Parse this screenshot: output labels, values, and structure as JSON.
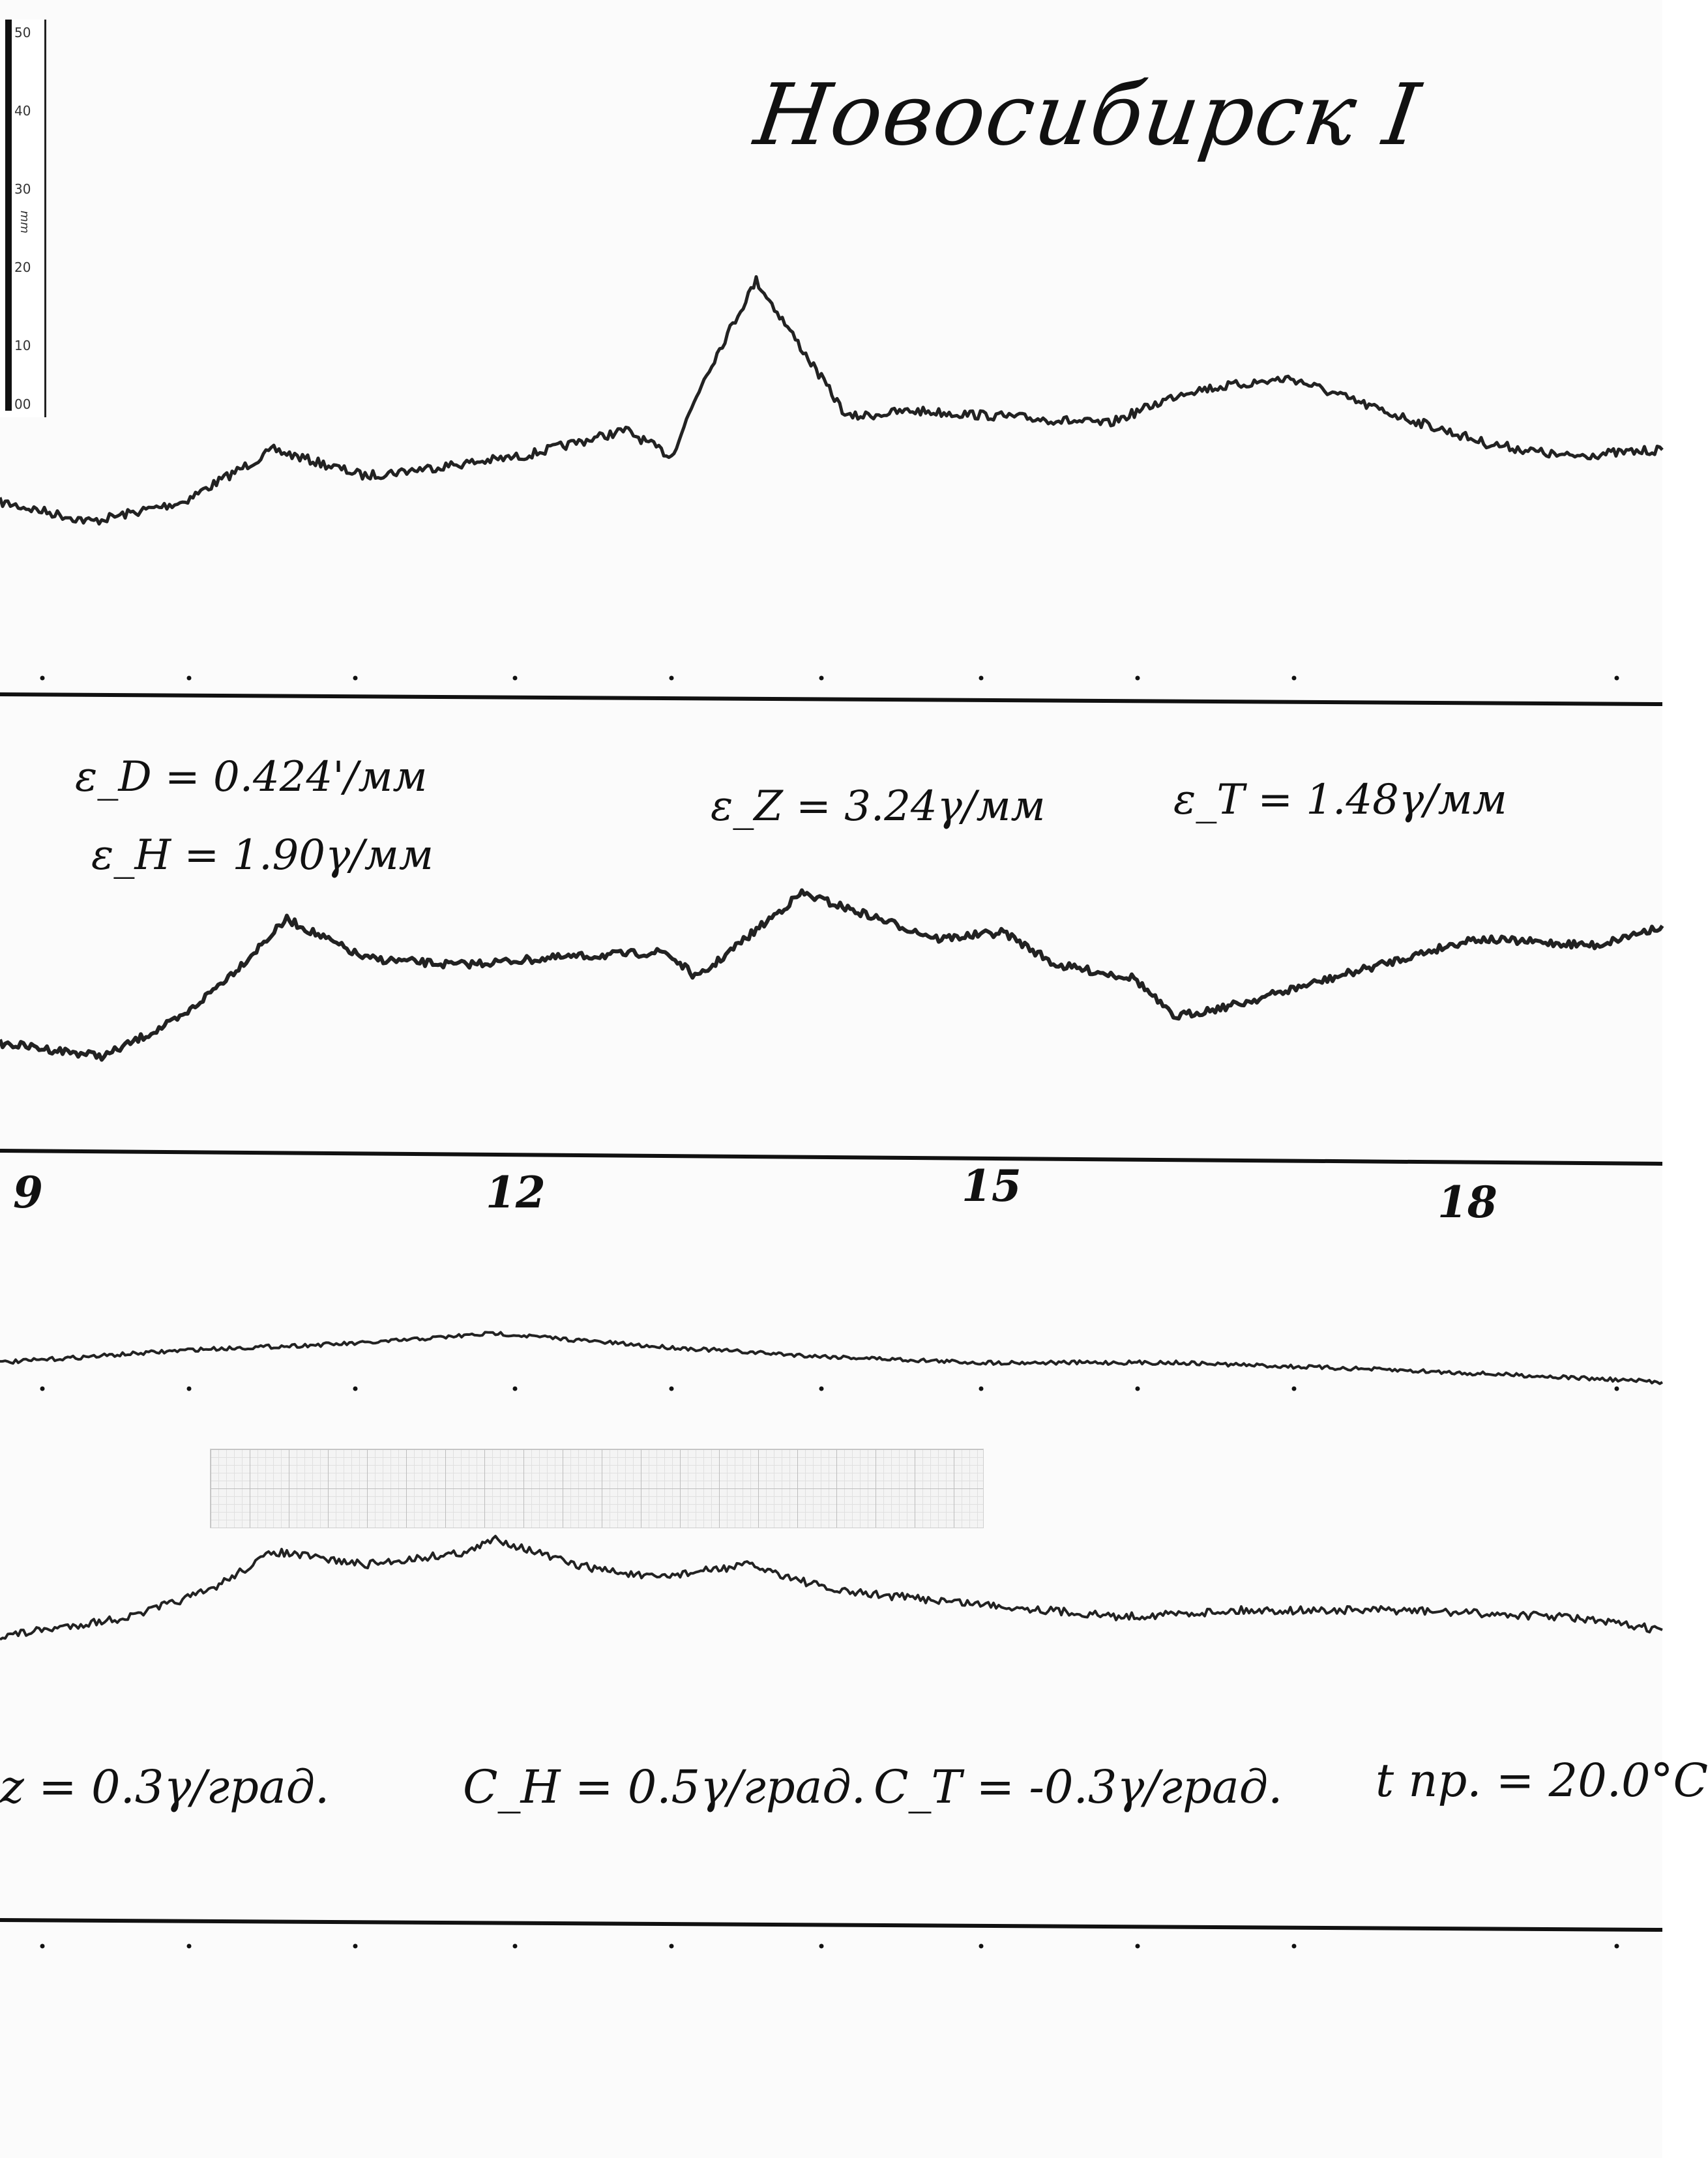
{
  "title": "Новосибирск I",
  "scale_ruler": {
    "labels": [
      "50",
      "40",
      "30",
      "20",
      "10",
      "00"
    ],
    "unit": "mm"
  },
  "sensitivities": {
    "eps_D": "ε_D = 0.424'/мм",
    "eps_H": "ε_H = 1.90γ/мм",
    "eps_Z": "ε_Z = 3.24γ/мм",
    "eps_T": "ε_T = 1.48γ/мм"
  },
  "hour_marks": [
    "9",
    "12",
    "15",
    "18"
  ],
  "temperature_coefficients": {
    "c_Z": "z = 0.3γ/град.",
    "c_H": "C_H = 0.5γ/град.",
    "c_T": "C_T = -0.3γ/град.",
    "t_pr": "t пр. = 20.0°C"
  },
  "colors": {
    "trace": "#222222",
    "baseline": "#111111",
    "paper": "#fbfbfb"
  }
}
